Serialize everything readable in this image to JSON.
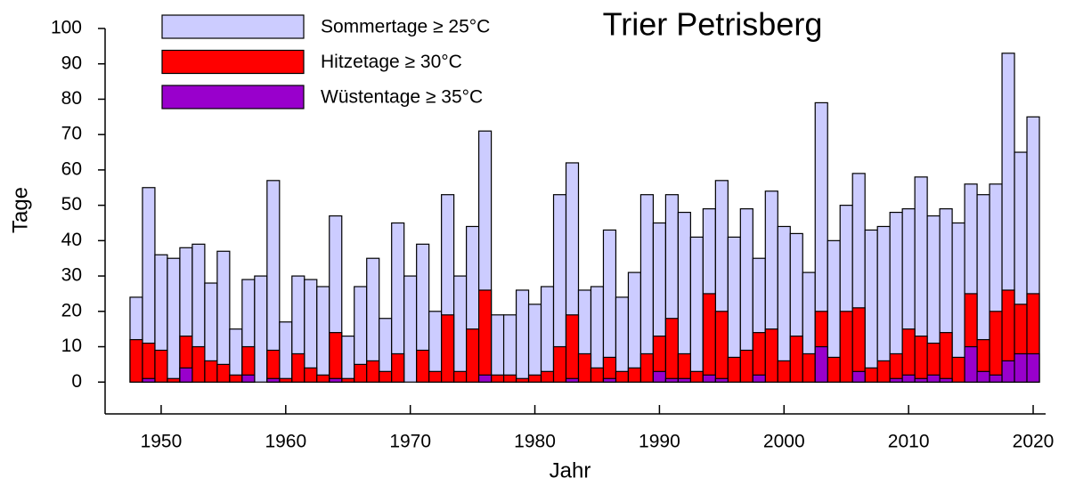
{
  "chart_data": {
    "type": "bar",
    "title": "Trier Petrisberg",
    "x_label": "Jahr",
    "y_label": "Tage",
    "x": [
      1948,
      1949,
      1950,
      1951,
      1952,
      1953,
      1954,
      1955,
      1956,
      1957,
      1958,
      1959,
      1960,
      1961,
      1962,
      1963,
      1964,
      1965,
      1966,
      1967,
      1968,
      1969,
      1970,
      1971,
      1972,
      1973,
      1974,
      1975,
      1976,
      1977,
      1978,
      1979,
      1980,
      1981,
      1982,
      1983,
      1984,
      1985,
      1986,
      1987,
      1988,
      1989,
      1990,
      1991,
      1992,
      1993,
      1994,
      1995,
      1996,
      1997,
      1998,
      1999,
      2000,
      2001,
      2002,
      2003,
      2004,
      2005,
      2006,
      2007,
      2008,
      2009,
      2010,
      2011,
      2012,
      2013,
      2014,
      2015,
      2016,
      2017,
      2018,
      2019,
      2020
    ],
    "series": [
      {
        "name": "Sommertage ≥ 25°C",
        "color": "#ccccff",
        "values": [
          24,
          55,
          36,
          35,
          38,
          39,
          28,
          37,
          15,
          29,
          30,
          57,
          17,
          30,
          29,
          27,
          47,
          13,
          27,
          35,
          18,
          45,
          30,
          39,
          20,
          53,
          30,
          44,
          71,
          19,
          19,
          26,
          22,
          27,
          53,
          62,
          26,
          27,
          43,
          24,
          31,
          53,
          45,
          53,
          48,
          41,
          49,
          57,
          41,
          49,
          35,
          54,
          44,
          42,
          31,
          79,
          40,
          50,
          59,
          43,
          44,
          48,
          49,
          58,
          47,
          49,
          45,
          56,
          53,
          56,
          93,
          65,
          75
        ]
      },
      {
        "name": "Hitzetage ≥ 30°C",
        "color": "#ff0000",
        "values": [
          12,
          11,
          9,
          1,
          13,
          10,
          6,
          5,
          2,
          10,
          0,
          9,
          1,
          8,
          4,
          2,
          14,
          1,
          5,
          6,
          3,
          8,
          0,
          9,
          3,
          19,
          3,
          15,
          26,
          2,
          2,
          1,
          2,
          3,
          10,
          19,
          8,
          4,
          7,
          3,
          4,
          8,
          13,
          18,
          8,
          3,
          25,
          20,
          7,
          9,
          14,
          15,
          6,
          13,
          8,
          20,
          7,
          20,
          21,
          4,
          6,
          8,
          15,
          13,
          11,
          14,
          7,
          25,
          12,
          20,
          26,
          22,
          25
        ]
      },
      {
        "name": "Wüstentage ≥ 35°C",
        "color": "#9900cc",
        "values": [
          0,
          1,
          0,
          0,
          4,
          0,
          0,
          0,
          0,
          2,
          0,
          1,
          0,
          0,
          0,
          0,
          1,
          0,
          0,
          0,
          0,
          0,
          0,
          0,
          0,
          0,
          0,
          0,
          2,
          0,
          0,
          0,
          0,
          0,
          0,
          1,
          0,
          0,
          1,
          0,
          0,
          0,
          3,
          1,
          1,
          0,
          2,
          1,
          0,
          0,
          2,
          0,
          0,
          0,
          0,
          10,
          0,
          0,
          3,
          0,
          0,
          1,
          2,
          1,
          2,
          1,
          0,
          10,
          3,
          2,
          6,
          8,
          8
        ]
      }
    ],
    "xlim": [
      1945.5,
      2021
    ],
    "xticks": [
      1950,
      1960,
      1970,
      1980,
      1990,
      2000,
      2010,
      2020
    ],
    "ylim": [
      -9,
      100
    ],
    "yticks": [
      0,
      10,
      20,
      30,
      40,
      50,
      60,
      70,
      80,
      90,
      100
    ],
    "legend": "top-left"
  }
}
